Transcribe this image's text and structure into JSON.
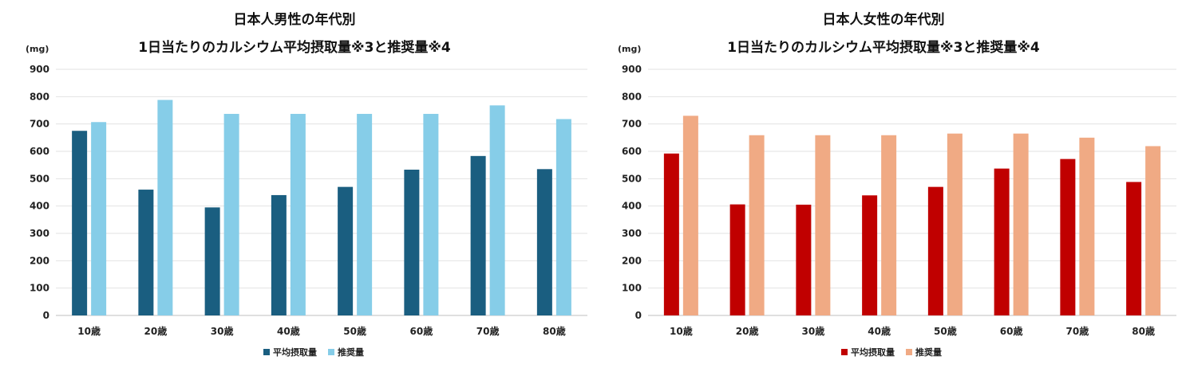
{
  "chart_data": [
    {
      "type": "bar",
      "title": "日本人男性の年代別",
      "subtitle": "1日当たりのカルシウム平均摂取量※3と推奨量※4",
      "ylabel": "(mg)",
      "xlabel": "",
      "ylim": [
        0,
        900
      ],
      "yticks": [
        "0",
        "100",
        "200",
        "300",
        "400",
        "500",
        "600",
        "700",
        "800",
        "900"
      ],
      "categories": [
        "10歳",
        "20歳",
        "30歳",
        "40歳",
        "50歳",
        "60歳",
        "70歳",
        "80歳"
      ],
      "series": [
        {
          "name": "平均摂取量",
          "color": "#1a5e80",
          "values": [
            675,
            460,
            395,
            440,
            470,
            533,
            583,
            535
          ]
        },
        {
          "name": "推奨量",
          "color": "#86cde8",
          "values": [
            707,
            788,
            737,
            737,
            737,
            737,
            768,
            718
          ]
        }
      ],
      "grid": true,
      "legend": "bottom"
    },
    {
      "type": "bar",
      "title": "日本人女性の年代別",
      "subtitle": "1日当たりのカルシウム平均摂取量※3と推奨量※4",
      "ylabel": "(mg)",
      "xlabel": "",
      "ylim": [
        0,
        900
      ],
      "yticks": [
        "0",
        "100",
        "200",
        "300",
        "400",
        "500",
        "600",
        "700",
        "800",
        "900"
      ],
      "categories": [
        "10歳",
        "20歳",
        "30歳",
        "40歳",
        "50歳",
        "60歳",
        "70歳",
        "80歳"
      ],
      "series": [
        {
          "name": "平均摂取量",
          "color": "#c00000",
          "values": [
            592,
            406,
            405,
            439,
            470,
            537,
            572,
            488
          ]
        },
        {
          "name": "推奨量",
          "color": "#f0aa84",
          "values": [
            730,
            659,
            659,
            659,
            665,
            665,
            650,
            619
          ]
        }
      ],
      "grid": true,
      "legend": "bottom"
    }
  ]
}
